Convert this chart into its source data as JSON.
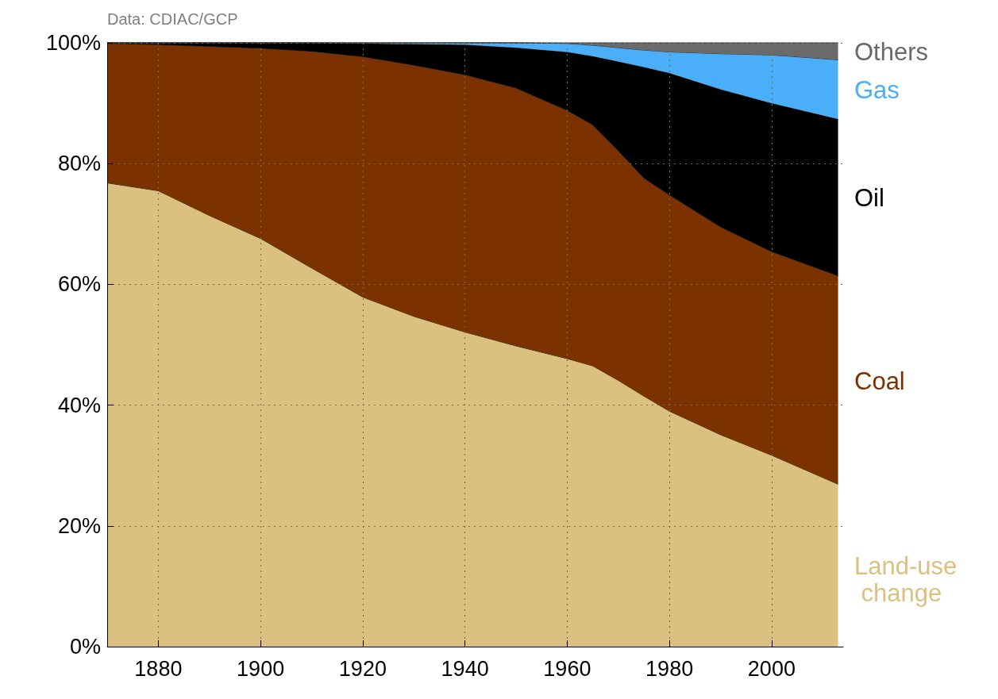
{
  "chart_data": {
    "type": "area",
    "stacked": true,
    "annotations": [
      "Data: CDIAC/GCP"
    ],
    "x": [
      1870,
      1880,
      1890,
      1900,
      1910,
      1920,
      1930,
      1940,
      1950,
      1960,
      1965,
      1970,
      1975,
      1980,
      1990,
      2000,
      2013
    ],
    "series": [
      {
        "name": "Land-use change",
        "color": "#dcc07f",
        "values": [
          76.8,
          75.5,
          71.4,
          67.6,
          62.7,
          57.9,
          54.7,
          52.1,
          49.8,
          47.7,
          46.5,
          44.1,
          41.5,
          39.0,
          35.1,
          31.7,
          26.9
        ]
      },
      {
        "name": "Coal",
        "color": "#7b3100",
        "values": [
          23.1,
          24.2,
          28.0,
          31.5,
          35.9,
          39.8,
          41.6,
          42.6,
          42.7,
          41.1,
          39.9,
          38.0,
          36.1,
          35.8,
          34.4,
          33.7,
          34.5
        ]
      },
      {
        "name": "Oil",
        "color": "#000000",
        "values": [
          0.1,
          0.3,
          0.6,
          0.9,
          1.4,
          2.2,
          3.5,
          5.0,
          6.7,
          9.7,
          11.4,
          14.8,
          18.4,
          20.2,
          22.8,
          24.6,
          26.0
        ]
      },
      {
        "name": "Gas",
        "color": "#4aaef8",
        "values": [
          0,
          0,
          0,
          0,
          0,
          0.1,
          0.2,
          0.3,
          0.8,
          1.4,
          1.8,
          2.3,
          2.8,
          3.5,
          5.9,
          8.0,
          9.8
        ]
      },
      {
        "name": "Others",
        "color": "#6a6a6a",
        "values": [
          0,
          0,
          0,
          0,
          0,
          0,
          0,
          0,
          0,
          0.1,
          0.4,
          0.8,
          1.2,
          1.5,
          1.8,
          2.0,
          2.8
        ]
      }
    ],
    "xlim": [
      1870,
      2014
    ],
    "xticks": [
      1880,
      1900,
      1920,
      1940,
      1960,
      1980,
      2000
    ],
    "ylim": [
      0,
      100
    ],
    "yticks": [
      {
        "value": 0,
        "label": "0%"
      },
      {
        "value": 20,
        "label": "20%"
      },
      {
        "value": 40,
        "label": "40%"
      },
      {
        "value": 60,
        "label": "60%"
      },
      {
        "value": 80,
        "label": "80%"
      },
      {
        "value": 100,
        "label": "100%"
      }
    ],
    "grid": true
  }
}
